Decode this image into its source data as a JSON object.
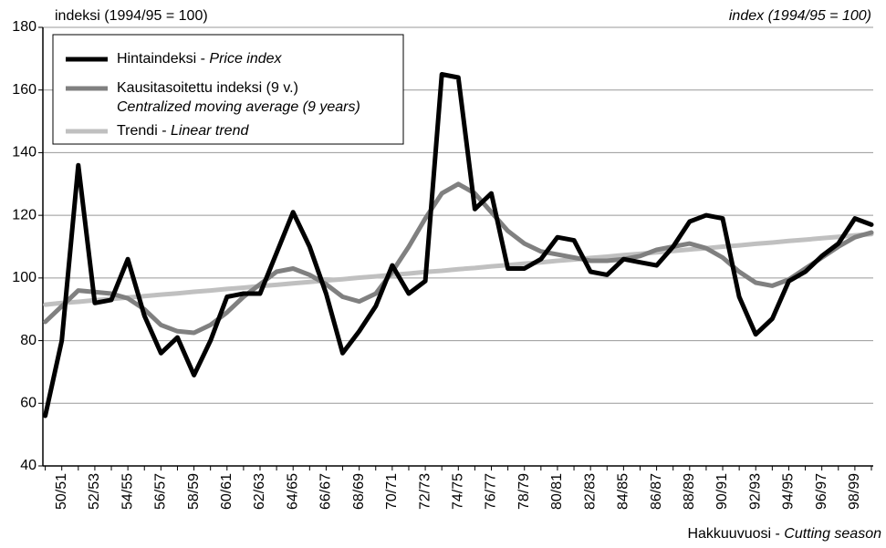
{
  "chart_data": {
    "type": "line",
    "ylabel_left": "indeksi (1994/95 = 100)",
    "ylabel_right": "index (1994/95 = 100)",
    "xlabel": "Hakkuuvuosi -",
    "xlabel_en": "Cutting season",
    "categories": [
      null,
      "50/51",
      null,
      "52/53",
      null,
      "54/55",
      null,
      "56/57",
      null,
      "58/59",
      null,
      "60/61",
      null,
      "62/63",
      null,
      "64/65",
      null,
      "66/67",
      null,
      "68/69",
      null,
      "70/71",
      null,
      "72/73",
      null,
      "74/75",
      null,
      "76/77",
      null,
      "78/79",
      null,
      "80/81",
      null,
      "82/83",
      null,
      "84/85",
      null,
      "86/87",
      null,
      "88/89",
      null,
      "90/91",
      null,
      "92/93",
      null,
      "94/95",
      null,
      "96/97",
      null,
      "98/99",
      null
    ],
    "series": [
      {
        "name": "Hintaindeksi -",
        "name_en": "Price index",
        "color": "#000000",
        "values": [
          56,
          80,
          136,
          92,
          93,
          106,
          88,
          76,
          81,
          69,
          80,
          94,
          95,
          95,
          108,
          121,
          110,
          95,
          76,
          83,
          91,
          104,
          95,
          99,
          165,
          164,
          122,
          127,
          103,
          103,
          106,
          113,
          112,
          102,
          101,
          106,
          105,
          104,
          110,
          118,
          120,
          119,
          94,
          82,
          87,
          99,
          102,
          107,
          111,
          119,
          117
        ]
      },
      {
        "name": "Kausitasoitettu indeksi (9 v.)",
        "name_en": "Centralized moving average (9 years)",
        "color": "#808080",
        "values": [
          86,
          91,
          96,
          95.5,
          95,
          93.5,
          90,
          85,
          83,
          82.5,
          85,
          89,
          94,
          98,
          102,
          103,
          101,
          98,
          94,
          92.5,
          95,
          102,
          110,
          119,
          127,
          130,
          127,
          121,
          115,
          111,
          108.5,
          107.5,
          106.5,
          105.5,
          105.5,
          106,
          107,
          109,
          110,
          111,
          109.5,
          106.5,
          102,
          98.5,
          97.5,
          99.5,
          103,
          106.5,
          110,
          113,
          114.5
        ]
      },
      {
        "name": "Trendi -",
        "name_en": "Linear trend",
        "color": "#c0c0c0",
        "values": [
          91.5,
          92.0,
          92.4,
          92.9,
          93.3,
          93.8,
          94.2,
          94.7,
          95.1,
          95.6,
          96.0,
          96.5,
          96.9,
          97.4,
          97.8,
          98.3,
          98.7,
          99.2,
          99.6,
          100.1,
          100.5,
          101.0,
          101.4,
          101.9,
          102.3,
          102.8,
          103.2,
          103.7,
          104.1,
          104.6,
          105.0,
          105.5,
          105.9,
          106.4,
          106.8,
          107.3,
          107.7,
          108.2,
          108.6,
          109.1,
          109.5,
          110.0,
          110.4,
          110.9,
          111.3,
          111.8,
          112.2,
          112.7,
          113.1,
          113.6,
          114.0
        ]
      }
    ],
    "ylim": [
      40,
      180
    ],
    "yticks": [
      40,
      60,
      80,
      100,
      120,
      140,
      160,
      180
    ],
    "grid": true,
    "legend": "upper left"
  }
}
